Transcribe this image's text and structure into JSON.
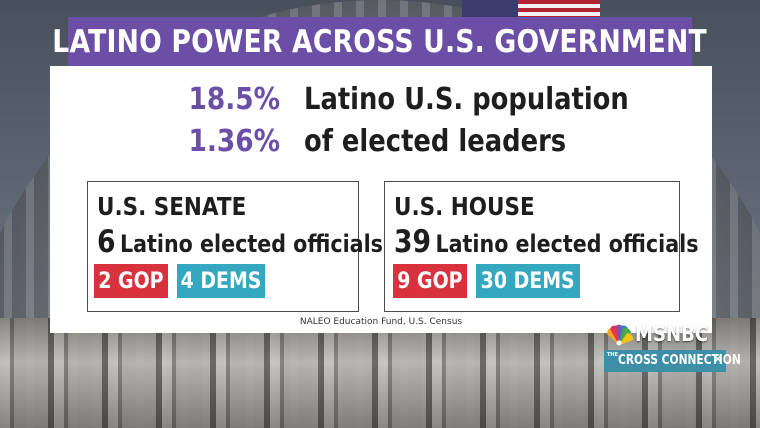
{
  "title": "LATINO POWER ACROSS U.S. GOVERNMENT",
  "stats": [
    {
      "value": "18.5%",
      "label": "Latino U.S. population"
    },
    {
      "value": "1.36%",
      "label": "of elected leaders"
    }
  ],
  "senate": {
    "title": "U.S. SENATE",
    "count": "6",
    "desc": "Latino elected officials",
    "gop": "2 GOP",
    "dems": "4 DEMS"
  },
  "house": {
    "title": "U.S. HOUSE",
    "count": "39",
    "desc": "Latino elected officials",
    "gop": "9 GOP",
    "dems": "30 DEMS"
  },
  "source": "NALEO Education Fund, U.S. Census",
  "network": {
    "name": "MSNBC",
    "show_prefix": "THE",
    "show_name": "CROSS CONNECTION",
    "show_mark": "✕"
  },
  "colors": {
    "banner": "#6b4ea6",
    "stat_value": "#6b4ea6",
    "gop": "#d8323f",
    "dems": "#35a7bf"
  }
}
